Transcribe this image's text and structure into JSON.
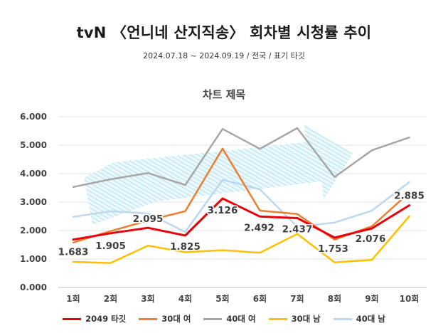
{
  "header": {
    "title": "tvN 〈언니네 산지직송〉 회차별 시청률 추이",
    "subtitle": "2024.07.18 ~ 2024.09.19 / 전국 / 표기 타깃"
  },
  "chart_data": {
    "type": "line",
    "title": "차트 제목",
    "xlabel": "",
    "ylabel": "",
    "categories": [
      "1회",
      "2회",
      "3회",
      "4회",
      "5회",
      "6회",
      "7회",
      "8회",
      "9회",
      "10회"
    ],
    "ylim": [
      0,
      6
    ],
    "yticks": [
      "0.000",
      "1.000",
      "2.000",
      "3.000",
      "4.000",
      "5.000",
      "6.000"
    ],
    "grid": true,
    "legend_position": "bottom",
    "decoration": "light-blue-arrow",
    "series": [
      {
        "name": "2049 타깃",
        "color": "#e8000b",
        "width": 3,
        "values": [
          1.683,
          1.905,
          2.095,
          1.825,
          3.126,
          2.492,
          2.437,
          1.753,
          2.076,
          2.885
        ],
        "labels_shown": true
      },
      {
        "name": "30대 여",
        "color": "#ed7d31",
        "width": 2.5,
        "values": [
          1.58,
          1.98,
          2.35,
          2.68,
          4.88,
          2.7,
          2.58,
          1.68,
          2.15,
          3.33
        ],
        "labels_shown": false
      },
      {
        "name": "40대 여",
        "color": "#a6a6a6",
        "width": 2.5,
        "values": [
          3.53,
          3.8,
          4.02,
          3.6,
          5.57,
          4.87,
          5.6,
          3.88,
          4.82,
          5.27
        ],
        "labels_shown": false
      },
      {
        "name": "30대 남",
        "color": "#ffc000",
        "width": 2.5,
        "values": [
          0.9,
          0.86,
          1.47,
          1.24,
          1.31,
          1.22,
          1.88,
          0.88,
          0.97,
          2.5
        ],
        "labels_shown": false
      },
      {
        "name": "40대 남",
        "color": "#bdd7ee",
        "width": 2.5,
        "values": [
          2.48,
          2.68,
          2.6,
          1.95,
          3.78,
          3.45,
          2.13,
          2.28,
          2.7,
          3.7
        ],
        "labels_shown": false
      }
    ]
  }
}
